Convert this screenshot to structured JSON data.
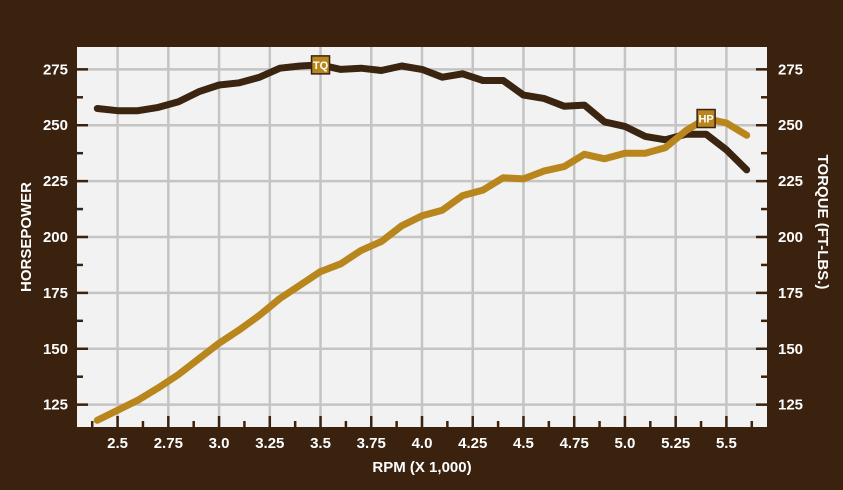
{
  "chart_data": {
    "type": "line",
    "title": "",
    "xlabel": "RPM (X 1,000)",
    "ylabel_left": "HORSEPOWER",
    "ylabel_right": "TORQUE (FT-LBS.)",
    "xlim": [
      2.3,
      5.7
    ],
    "ylim": [
      115,
      285
    ],
    "grid": true,
    "x_ticks": [
      "2.5",
      "2.75",
      "3.0",
      "3.25",
      "3.5",
      "3.75",
      "4.0",
      "4.25",
      "4.5",
      "4.75",
      "5.0",
      "5.25",
      "5.5"
    ],
    "y_ticks": [
      "125",
      "150",
      "175",
      "200",
      "225",
      "250",
      "275"
    ],
    "series": [
      {
        "name": "TQ",
        "axis": "right",
        "color": "#3b2410",
        "marker_label": "TQ",
        "marker_at": [
          3.5,
          277
        ],
        "points": [
          [
            2.4,
            257.5
          ],
          [
            2.5,
            256.5
          ],
          [
            2.6,
            256.5
          ],
          [
            2.7,
            258
          ],
          [
            2.8,
            260.5
          ],
          [
            2.9,
            265
          ],
          [
            3.0,
            268
          ],
          [
            3.1,
            269
          ],
          [
            3.2,
            271.5
          ],
          [
            3.3,
            275.5
          ],
          [
            3.4,
            276.5
          ],
          [
            3.5,
            277
          ],
          [
            3.6,
            275
          ],
          [
            3.7,
            275.5
          ],
          [
            3.8,
            274.5
          ],
          [
            3.9,
            276.5
          ],
          [
            4.0,
            275
          ],
          [
            4.1,
            271.5
          ],
          [
            4.2,
            273
          ],
          [
            4.3,
            270
          ],
          [
            4.4,
            270
          ],
          [
            4.5,
            263.5
          ],
          [
            4.6,
            262
          ],
          [
            4.7,
            258.5
          ],
          [
            4.8,
            259
          ],
          [
            4.9,
            251.5
          ],
          [
            5.0,
            249.5
          ],
          [
            5.1,
            245
          ],
          [
            5.2,
            243.5
          ],
          [
            5.3,
            246
          ],
          [
            5.4,
            246
          ],
          [
            5.5,
            239
          ],
          [
            5.6,
            230
          ]
        ]
      },
      {
        "name": "HP",
        "axis": "left",
        "color": "#b8861c",
        "marker_label": "HP",
        "marker_at": [
          5.4,
          253
        ],
        "points": [
          [
            2.4,
            118
          ],
          [
            2.5,
            122.5
          ],
          [
            2.6,
            127
          ],
          [
            2.7,
            132.5
          ],
          [
            2.8,
            138.5
          ],
          [
            2.9,
            145.5
          ],
          [
            3.0,
            152.5
          ],
          [
            3.1,
            158.5
          ],
          [
            3.2,
            165
          ],
          [
            3.3,
            172.5
          ],
          [
            3.4,
            178.5
          ],
          [
            3.5,
            184.5
          ],
          [
            3.6,
            188
          ],
          [
            3.7,
            194
          ],
          [
            3.8,
            198
          ],
          [
            3.9,
            205
          ],
          [
            4.0,
            209.5
          ],
          [
            4.1,
            212
          ],
          [
            4.2,
            218.5
          ],
          [
            4.3,
            221
          ],
          [
            4.4,
            226.5
          ],
          [
            4.5,
            226
          ],
          [
            4.6,
            229.5
          ],
          [
            4.7,
            231.5
          ],
          [
            4.8,
            237
          ],
          [
            4.9,
            235
          ],
          [
            5.0,
            237.5
          ],
          [
            5.1,
            237.5
          ],
          [
            5.2,
            240
          ],
          [
            5.3,
            247.5
          ],
          [
            5.4,
            253
          ],
          [
            5.5,
            251
          ],
          [
            5.6,
            245.5
          ]
        ]
      }
    ]
  }
}
